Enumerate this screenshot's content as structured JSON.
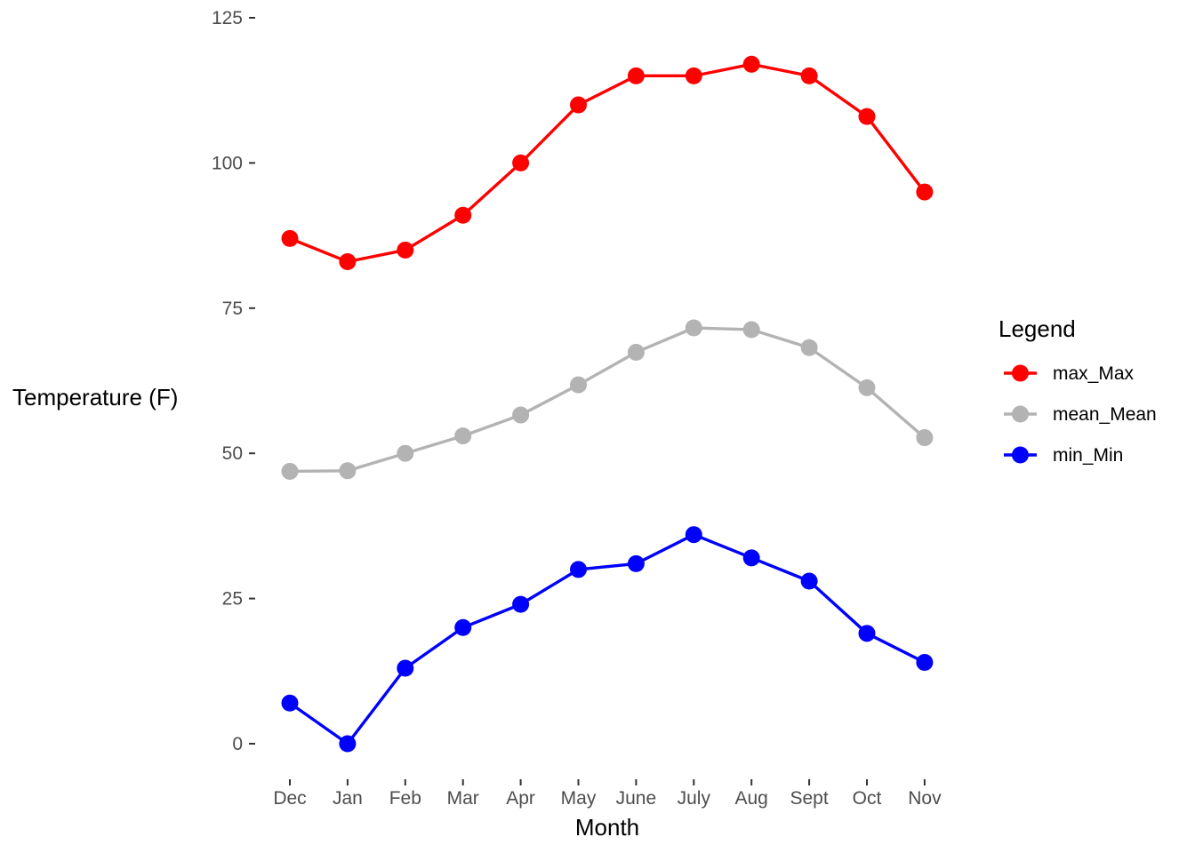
{
  "chart_data": {
    "type": "line",
    "title": "",
    "xlabel": "Month",
    "ylabel": "Temperature (F)",
    "categories": [
      "Dec",
      "Jan",
      "Feb",
      "Mar",
      "Apr",
      "May",
      "June",
      "July",
      "Aug",
      "Sept",
      "Oct",
      "Nov"
    ],
    "ylim": [
      -5,
      125
    ],
    "yticks": [
      0,
      25,
      50,
      75,
      100,
      125
    ],
    "grid": false,
    "legend": {
      "title": "Legend",
      "position": "right"
    },
    "series": [
      {
        "name": "max_Max",
        "color": "#ff0000",
        "values": [
          87,
          83,
          85,
          91,
          100,
          110,
          115,
          115,
          117,
          115,
          108,
          95
        ]
      },
      {
        "name": "mean_Mean",
        "color": "#b3b3b3",
        "values": [
          46.9,
          47.0,
          50.0,
          53.0,
          56.6,
          61.8,
          67.4,
          71.6,
          71.3,
          68.2,
          61.3,
          52.7
        ]
      },
      {
        "name": "min_Min",
        "color": "#0000ff",
        "values": [
          7,
          0,
          13,
          20,
          24,
          30,
          31,
          36,
          32,
          28,
          19,
          14
        ]
      }
    ]
  }
}
